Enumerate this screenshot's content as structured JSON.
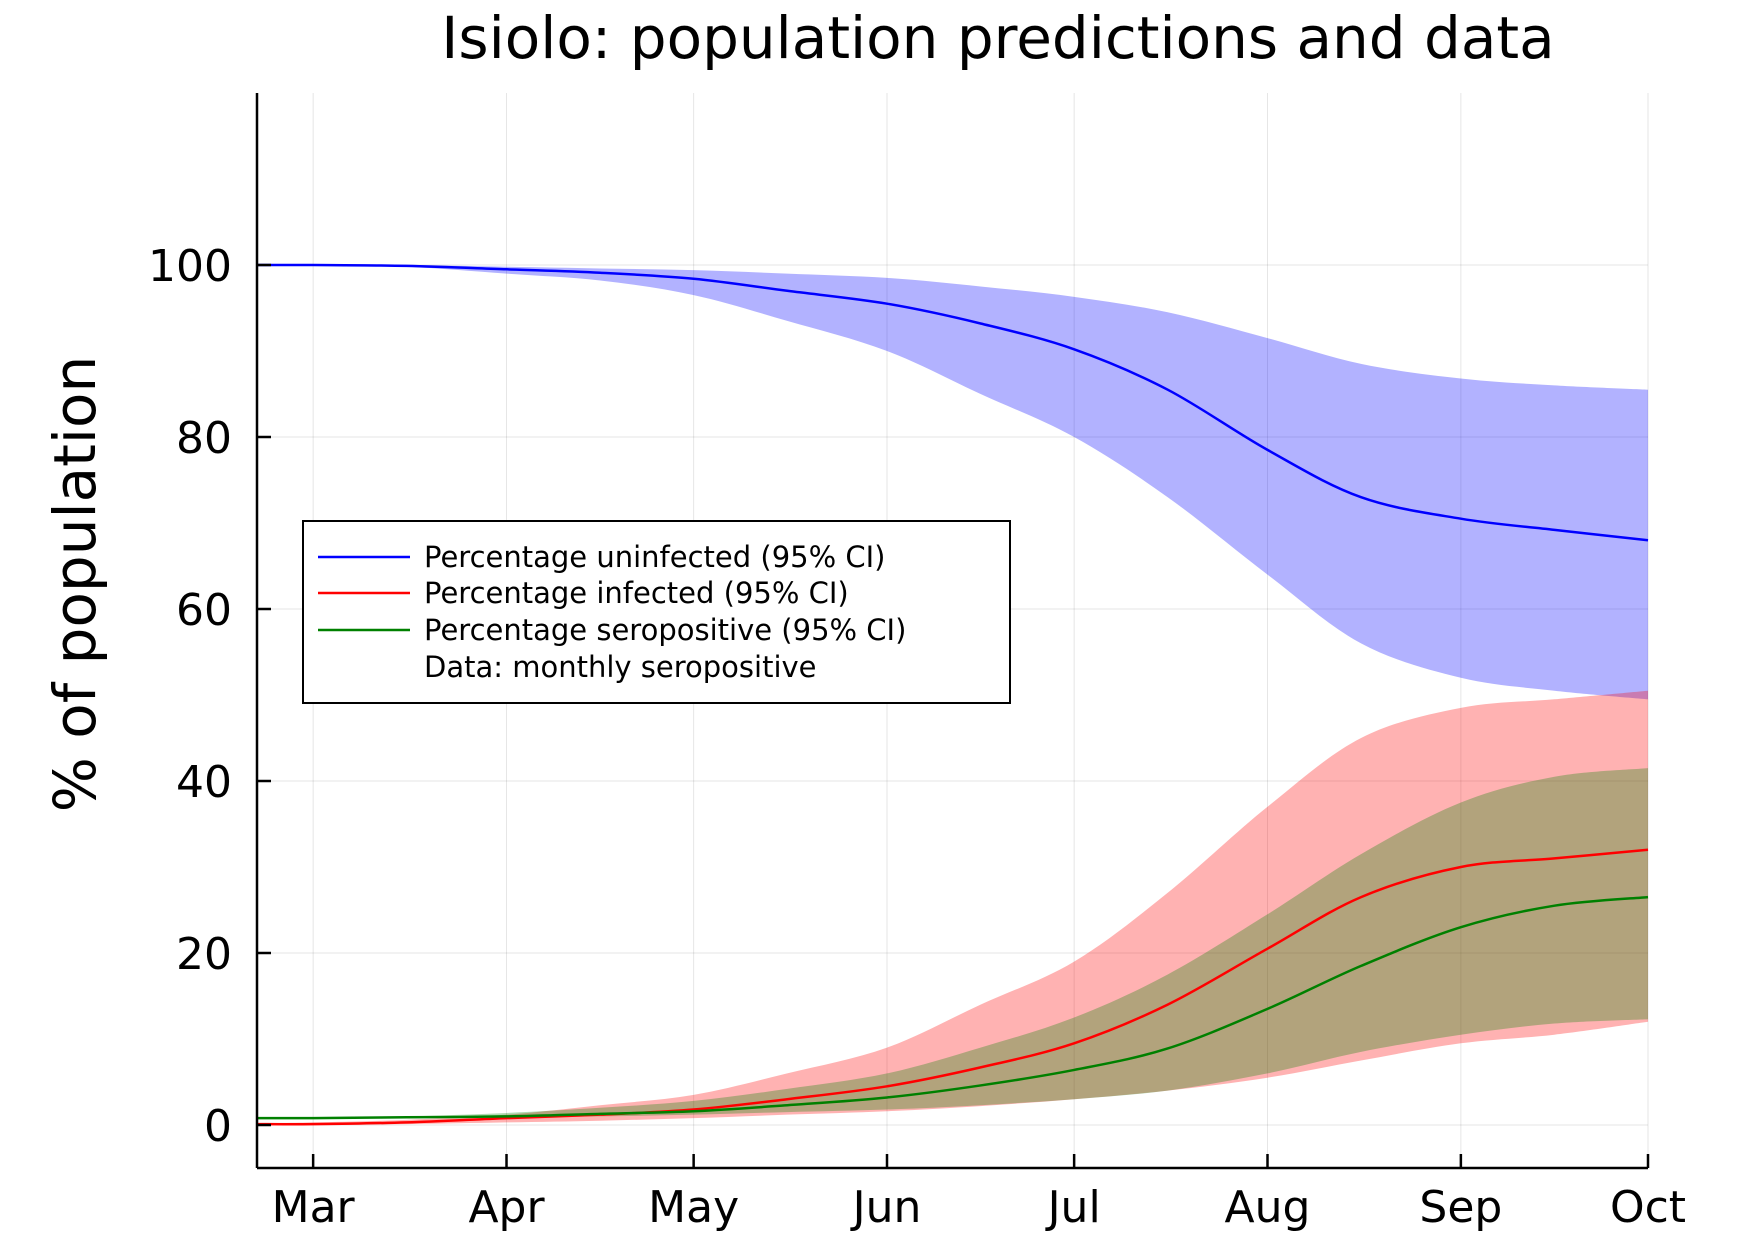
{
  "chart_data": {
    "type": "area",
    "title": "Isiolo: population predictions and data",
    "xlabel": "",
    "ylabel": "% of population",
    "x_tick_labels": [
      "Mar",
      "Apr",
      "May",
      "Jun",
      "Jul",
      "Aug",
      "Sep",
      "Oct"
    ],
    "x_tick_days": [
      0,
      31,
      61,
      92,
      122,
      153,
      184,
      214
    ],
    "xlim_days": [
      -9,
      214
    ],
    "y_ticks": [
      0,
      20,
      40,
      60,
      80,
      100
    ],
    "ylim": [
      -5,
      120
    ],
    "grid": true,
    "legend_position": "center-left",
    "series": [
      {
        "name": "Percentage uninfected (95% CI)",
        "color": "#0000ff",
        "band_color": "#0000ff",
        "x": [
          -9,
          0,
          15,
          31,
          46,
          61,
          76,
          92,
          107,
          122,
          137,
          153,
          168,
          184,
          199,
          214
        ],
        "mean": [
          100,
          100,
          99.9,
          99.5,
          99.1,
          98.4,
          97.0,
          95.5,
          93.2,
          90.2,
          85.5,
          78.5,
          73.0,
          70.5,
          69.2,
          68.0
        ],
        "lower": [
          100,
          100,
          99.8,
          99.0,
          98.2,
          96.5,
          93.5,
          90.0,
          85.0,
          80.0,
          73.0,
          64.0,
          56.0,
          52.0,
          50.5,
          49.5
        ],
        "upper": [
          100,
          100,
          100,
          99.8,
          99.6,
          99.4,
          99.0,
          98.5,
          97.5,
          96.3,
          94.5,
          91.5,
          88.5,
          86.8,
          86.0,
          85.5
        ]
      },
      {
        "name": "Percentage infected (95% CI)",
        "color": "#ff0000",
        "band_color": "#ff0000",
        "x": [
          -9,
          0,
          15,
          31,
          46,
          61,
          76,
          92,
          107,
          122,
          137,
          153,
          168,
          184,
          199,
          214
        ],
        "mean": [
          0.1,
          0.1,
          0.3,
          0.8,
          1.2,
          1.8,
          3.0,
          4.5,
          6.7,
          9.5,
          14.0,
          20.5,
          26.5,
          30.0,
          31.0,
          32.0
        ],
        "lower": [
          0,
          0,
          0.1,
          0.3,
          0.5,
          0.8,
          1.2,
          1.6,
          2.2,
          3.0,
          4.0,
          5.5,
          7.5,
          9.5,
          10.5,
          12.0
        ],
        "upper": [
          0.2,
          0.3,
          0.6,
          1.2,
          2.3,
          3.5,
          6.0,
          9.0,
          14.0,
          19.0,
          27.0,
          37.0,
          45.0,
          48.5,
          49.5,
          50.5
        ]
      },
      {
        "name": "Percentage seropositive (95% CI)",
        "color": "#008000",
        "band_color": "#008000",
        "x": [
          -9,
          0,
          15,
          31,
          46,
          61,
          76,
          92,
          107,
          122,
          137,
          153,
          168,
          184,
          199,
          214
        ],
        "mean": [
          0.8,
          0.8,
          0.9,
          1.0,
          1.3,
          1.6,
          2.3,
          3.2,
          4.6,
          6.4,
          8.9,
          13.5,
          18.5,
          23.0,
          25.5,
          26.5
        ],
        "lower": [
          0.8,
          0.8,
          0.8,
          0.9,
          1.0,
          1.2,
          1.5,
          1.8,
          2.3,
          3.0,
          4.0,
          6.0,
          8.5,
          10.5,
          11.8,
          12.3
        ],
        "upper": [
          0.8,
          0.8,
          1.0,
          1.4,
          2.0,
          2.8,
          4.2,
          6.0,
          9.0,
          12.5,
          17.5,
          24.5,
          31.5,
          37.5,
          40.5,
          41.5
        ]
      }
    ],
    "data_series": {
      "name": "Data: monthly seropositive",
      "points": []
    }
  }
}
